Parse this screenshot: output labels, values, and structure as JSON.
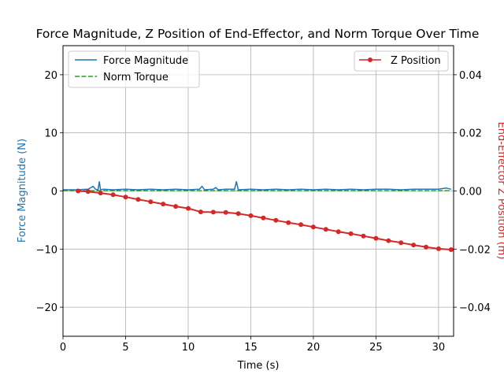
{
  "chart_data": {
    "type": "line",
    "title": "Force Magnitude, Z Position of End-Effector, and Norm Torque Over Time",
    "xlabel": "Time (s)",
    "ylabel_left": "Force Magnitude (N)",
    "ylabel_right": "End-Effector Z Position (m)",
    "xlim": [
      0,
      31.2
    ],
    "ylim_left": [
      -25,
      25
    ],
    "ylim_right": [
      -0.05,
      0.05
    ],
    "x_ticks": [
      0,
      5,
      10,
      15,
      20,
      25,
      30
    ],
    "x_tick_labels": [
      "0",
      "5",
      "10",
      "15",
      "20",
      "25",
      "30"
    ],
    "y_left_ticks": [
      -20,
      -10,
      0,
      10,
      20
    ],
    "y_left_tick_labels": [
      "−20",
      "−10",
      "0",
      "10",
      "20"
    ],
    "y_right_ticks": [
      -0.04,
      -0.02,
      0.0,
      0.02,
      0.04
    ],
    "y_right_tick_labels": [
      "−0.04",
      "−0.02",
      "0.00",
      "0.02",
      "0.04"
    ],
    "grid": true,
    "legend_left_placement": "top-left",
    "legend_right_placement": "top-right",
    "colors": {
      "force": "#1f77b4",
      "torque": "#2ca02c",
      "z": "#d62728",
      "left_axis_label": "#1f77b4",
      "right_axis_label": "#d62728",
      "grid": "#b0b0b0"
    },
    "series": [
      {
        "name": "Force Magnitude",
        "axis": "left",
        "style": "solid",
        "x": [
          0,
          1,
          2,
          2.4,
          2.6,
          2.8,
          2.9,
          3.0,
          3.2,
          4,
          5,
          6,
          7,
          8,
          9,
          10,
          10.9,
          11.1,
          11.3,
          12,
          12.2,
          12.4,
          13,
          13.7,
          13.85,
          14.0,
          15,
          16,
          17,
          18,
          19,
          20,
          21,
          22,
          23,
          24,
          25,
          26,
          27,
          28,
          29,
          30,
          30.6,
          31
        ],
        "y": [
          0.2,
          0.2,
          0.3,
          0.8,
          0.3,
          0.2,
          1.6,
          0.2,
          0.3,
          0.2,
          0.3,
          0.2,
          0.3,
          0.2,
          0.3,
          0.2,
          0.3,
          0.8,
          0.2,
          0.3,
          0.6,
          0.2,
          0.3,
          0.3,
          1.6,
          0.2,
          0.3,
          0.2,
          0.3,
          0.2,
          0.3,
          0.2,
          0.3,
          0.2,
          0.3,
          0.2,
          0.3,
          0.3,
          0.2,
          0.3,
          0.3,
          0.3,
          0.5,
          0.3
        ]
      },
      {
        "name": "Norm Torque",
        "axis": "left",
        "style": "dashed",
        "x": [
          0,
          5,
          10,
          15,
          20,
          25,
          31
        ],
        "y": [
          0.05,
          0.05,
          0.05,
          0.05,
          0.05,
          0.05,
          0.05
        ]
      },
      {
        "name": "Z Position",
        "axis": "right",
        "style": "solid-markers",
        "x": [
          1.2,
          2,
          3,
          4,
          5,
          6,
          7,
          8,
          9,
          10,
          11,
          12,
          13,
          14,
          15,
          16,
          17,
          18,
          19,
          20,
          21,
          22,
          23,
          24,
          25,
          26,
          27,
          28,
          29,
          30,
          31
        ],
        "y": [
          0.0,
          -0.0002,
          -0.0007,
          -0.0013,
          -0.0021,
          -0.0029,
          -0.0037,
          -0.0045,
          -0.0053,
          -0.006,
          -0.0072,
          -0.0073,
          -0.0074,
          -0.0078,
          -0.0085,
          -0.0093,
          -0.0101,
          -0.0109,
          -0.0116,
          -0.0124,
          -0.0132,
          -0.014,
          -0.0147,
          -0.0155,
          -0.0163,
          -0.0171,
          -0.0178,
          -0.0186,
          -0.0193,
          -0.0199,
          -0.0202
        ]
      }
    ]
  }
}
